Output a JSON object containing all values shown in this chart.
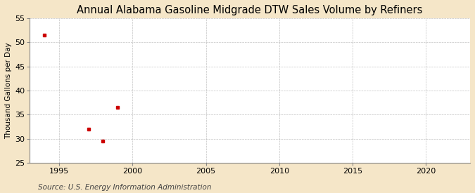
{
  "title": "Annual Alabama Gasoline Midgrade DTW Sales Volume by Refiners",
  "ylabel": "Thousand Gallons per Day",
  "source": "Source: U.S. Energy Information Administration",
  "x_data": [
    1994,
    1997,
    1998,
    1999
  ],
  "y_data": [
    51.5,
    32.0,
    29.5,
    36.5
  ],
  "marker_color": "#cc0000",
  "marker_style": "s",
  "marker_size": 3.5,
  "xlim": [
    1993,
    2023
  ],
  "ylim": [
    25,
    55
  ],
  "xticks": [
    1995,
    2000,
    2005,
    2010,
    2015,
    2020
  ],
  "yticks": [
    25,
    30,
    35,
    40,
    45,
    50,
    55
  ],
  "outer_bg_color": "#f5e6c8",
  "plot_bg_color": "#ffffff",
  "grid_color": "#aaaaaa",
  "title_fontsize": 10.5,
  "label_fontsize": 7.5,
  "tick_fontsize": 8,
  "source_fontsize": 7.5
}
